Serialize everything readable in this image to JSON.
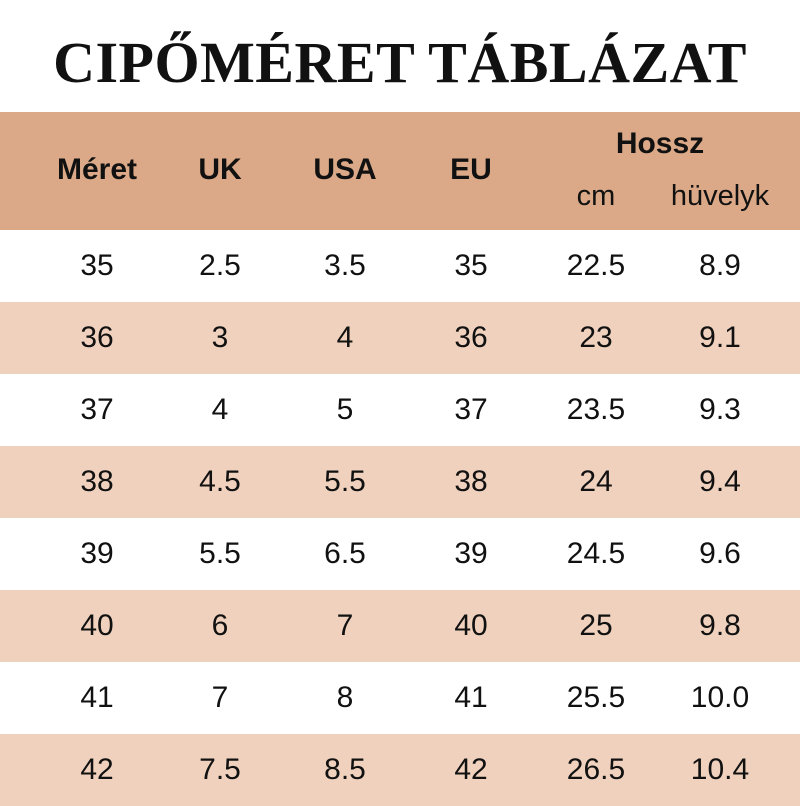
{
  "title": "CIPŐMÉRET TÁBLÁZAT",
  "colors": {
    "header_bg": "#dba987",
    "row_alt_bg": "#efd1bd",
    "row_bg": "#ffffff",
    "text": "#111111"
  },
  "header": {
    "meret": "Méret",
    "uk": "UK",
    "usa": "USA",
    "eu": "EU",
    "hossz": "Hossz",
    "cm": "cm",
    "huvelyk": "hüvelyk"
  },
  "rows": [
    [
      "35",
      "2.5",
      "3.5",
      "35",
      "22.5",
      "8.9"
    ],
    [
      "36",
      "3",
      "4",
      "36",
      "23",
      "9.1"
    ],
    [
      "37",
      "4",
      "5",
      "37",
      "23.5",
      "9.3"
    ],
    [
      "38",
      "4.5",
      "5.5",
      "38",
      "24",
      "9.4"
    ],
    [
      "39",
      "5.5",
      "6.5",
      "39",
      "24.5",
      "9.6"
    ],
    [
      "40",
      "6",
      "7",
      "40",
      "25",
      "9.8"
    ],
    [
      "41",
      "7",
      "8",
      "41",
      "25.5",
      "10.0"
    ],
    [
      "42",
      "7.5",
      "8.5",
      "42",
      "26.5",
      "10.4"
    ]
  ]
}
